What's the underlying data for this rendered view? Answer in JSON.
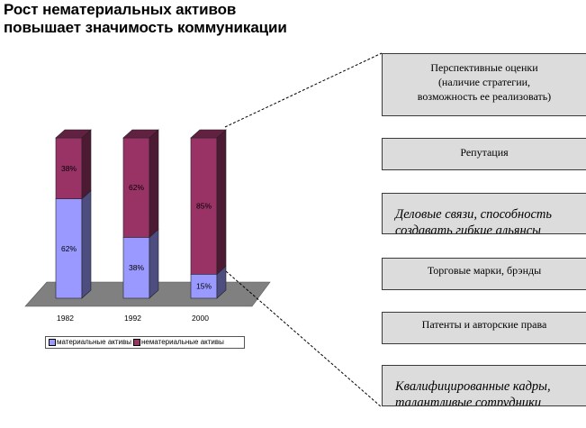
{
  "title": {
    "line1": "Рост нематериальных активов",
    "line2": "повышает значимость коммуникации"
  },
  "chart_data": {
    "type": "bar",
    "stacked": true,
    "three_d": true,
    "categories": [
      "1982",
      "1992",
      "2000"
    ],
    "series": [
      {
        "name": "материальные активы",
        "values": [
          62,
          38,
          15
        ],
        "labels": [
          "62%",
          "38%",
          "15%"
        ],
        "color": "#9999ff"
      },
      {
        "name": "нематериальные активы",
        "values": [
          38,
          62,
          85
        ],
        "labels": [
          "38%",
          "62%",
          "85%"
        ],
        "color": "#993366"
      }
    ],
    "ylim": [
      0,
      100
    ],
    "legend_position": "bottom"
  },
  "boxes": [
    {
      "lines": [
        "Перспективные оценки",
        "(наличие стратегии,",
        "возможность ее реализовать)"
      ]
    },
    {
      "lines": [
        "Репутация"
      ]
    },
    {
      "lines": [
        "Деловые связи, способность",
        "создавать гибкие альянсы"
      ]
    },
    {
      "lines": [
        "Торговые марки, брэнды"
      ]
    },
    {
      "lines": [
        "Патенты и авторские права"
      ]
    },
    {
      "lines": [
        "Квалифицированные кадры,",
        "талантливые сотрудники"
      ]
    }
  ]
}
